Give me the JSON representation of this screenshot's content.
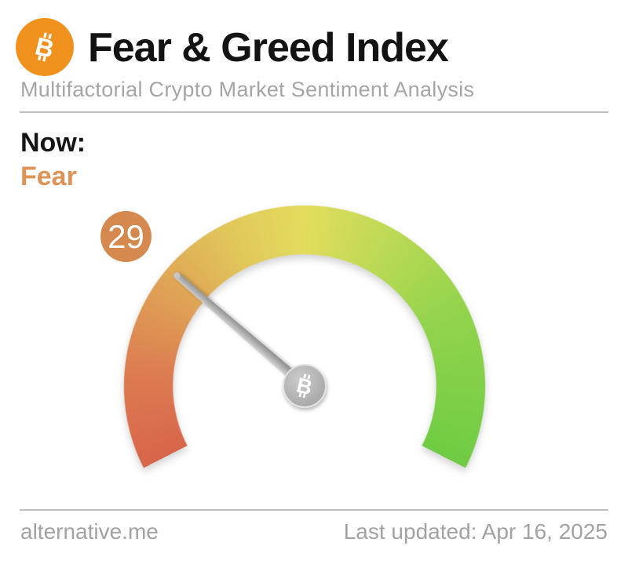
{
  "header": {
    "logo_icon": "bitcoin-icon",
    "title": "Fear & Greed Index",
    "subtitle": "Multifactorial Crypto Market Sentiment Analysis",
    "brand_orange": "#f0911e"
  },
  "now": {
    "label": "Now:",
    "value_classification": "Fear",
    "classification_color": "#de9355"
  },
  "gauge": {
    "value": 29,
    "min": 0,
    "max": 100,
    "badge_color": "#d6894f",
    "needle_color": "#a9a9a9",
    "hub_icon": "bitcoin-icon",
    "sweep_deg": 234,
    "start_angle_css_deg": 243,
    "arc_gradient": [
      {
        "angle": 0,
        "color": "#d8654a"
      },
      {
        "angle": 30,
        "color": "#dc7a51"
      },
      {
        "angle": 60,
        "color": "#dfa055"
      },
      {
        "angle": 90,
        "color": "#e1c65a"
      },
      {
        "angle": 117,
        "color": "#e3dc5e"
      },
      {
        "angle": 150,
        "color": "#b8d954"
      },
      {
        "angle": 180,
        "color": "#93d44c"
      },
      {
        "angle": 234,
        "color": "#6fcc44"
      }
    ]
  },
  "footer": {
    "source": "alternative.me",
    "last_updated": "Last updated: Apr 16, 2025"
  },
  "chart_data": {
    "type": "gauge",
    "title": "Fear & Greed Index",
    "subtitle": "Multifactorial Crypto Market Sentiment Analysis",
    "value": 29,
    "min": 0,
    "max": 100,
    "classification": "Fear",
    "scale": "0 = Extreme Fear (red, left end) to 100 = Extreme Greed (green, right end); needle at 29 in the orange Fear zone",
    "legend_position": "none",
    "source": "alternative.me",
    "last_updated_label": "Last updated: Apr 16, 2025"
  }
}
